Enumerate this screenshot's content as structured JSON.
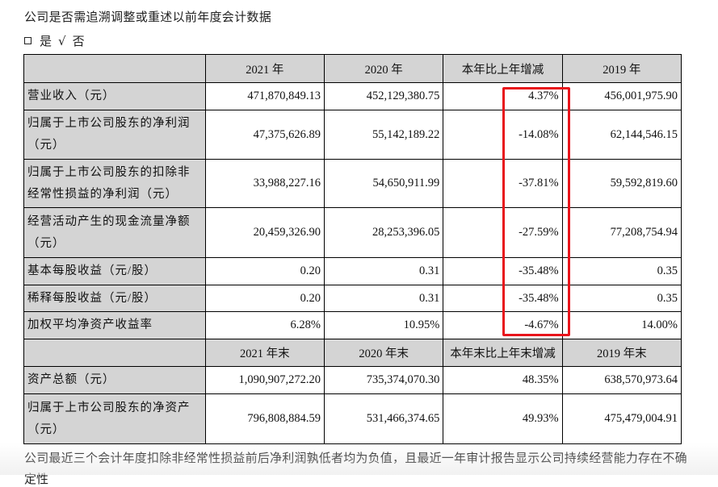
{
  "heading": "公司是否需追溯调整或重述以前年度会计数据",
  "choice": {
    "yes_box": "□",
    "yes_label": "是",
    "no_check": "√",
    "no_label": "否"
  },
  "table": {
    "section1_headers": [
      "",
      "2021 年",
      "2020 年",
      "本年比上年增减",
      "2019 年"
    ],
    "section1_rows": [
      {
        "label": "营业收入（元）",
        "v2021": "471,870,849.13",
        "v2020": "452,129,380.75",
        "change": "4.37%",
        "v2019": "456,001,975.90"
      },
      {
        "label": "归属于上市公司股东的净利润（元）",
        "v2021": "47,375,626.89",
        "v2020": "55,142,189.22",
        "change": "-14.08%",
        "v2019": "62,144,546.15"
      },
      {
        "label": "归属于上市公司股东的扣除非经常性损益的净利润（元）",
        "v2021": "33,988,227.16",
        "v2020": "54,650,911.99",
        "change": "-37.81%",
        "v2019": "59,592,819.60"
      },
      {
        "label": "经营活动产生的现金流量净额（元）",
        "v2021": "20,459,326.90",
        "v2020": "28,253,396.05",
        "change": "-27.59%",
        "v2019": "77,208,754.94"
      },
      {
        "label": "基本每股收益（元/股）",
        "v2021": "0.20",
        "v2020": "0.31",
        "change": "-35.48%",
        "v2019": "0.35"
      },
      {
        "label": "稀释每股收益（元/股）",
        "v2021": "0.20",
        "v2020": "0.31",
        "change": "-35.48%",
        "v2019": "0.35"
      },
      {
        "label": "加权平均净资产收益率",
        "v2021": "6.28%",
        "v2020": "10.95%",
        "change": "-4.67%",
        "v2019": "14.00%"
      }
    ],
    "section2_headers": [
      "",
      "2021 年末",
      "2020 年末",
      "本年末比上年末增减",
      "2019 年末"
    ],
    "section2_rows": [
      {
        "label": "资产总额（元）",
        "v2021": "1,090,907,272.20",
        "v2020": "735,374,070.30",
        "change": "48.35%",
        "v2019": "638,570,973.64"
      },
      {
        "label": "归属于上市公司股东的净资产（元）",
        "v2021": "796,808,884.59",
        "v2020": "531,466,374.65",
        "change": "49.93%",
        "v2019": "475,479,004.91"
      }
    ]
  },
  "highlight": {
    "color": "#e8141b",
    "target": "本年比上年增减 column"
  },
  "footer": {
    "line1": "公司最近三个会计年度扣除非经常性损益前后净利润孰低者均为负值，且最近一年审计报告显示公司持续经营能力存在不确",
    "line2": "定性"
  }
}
